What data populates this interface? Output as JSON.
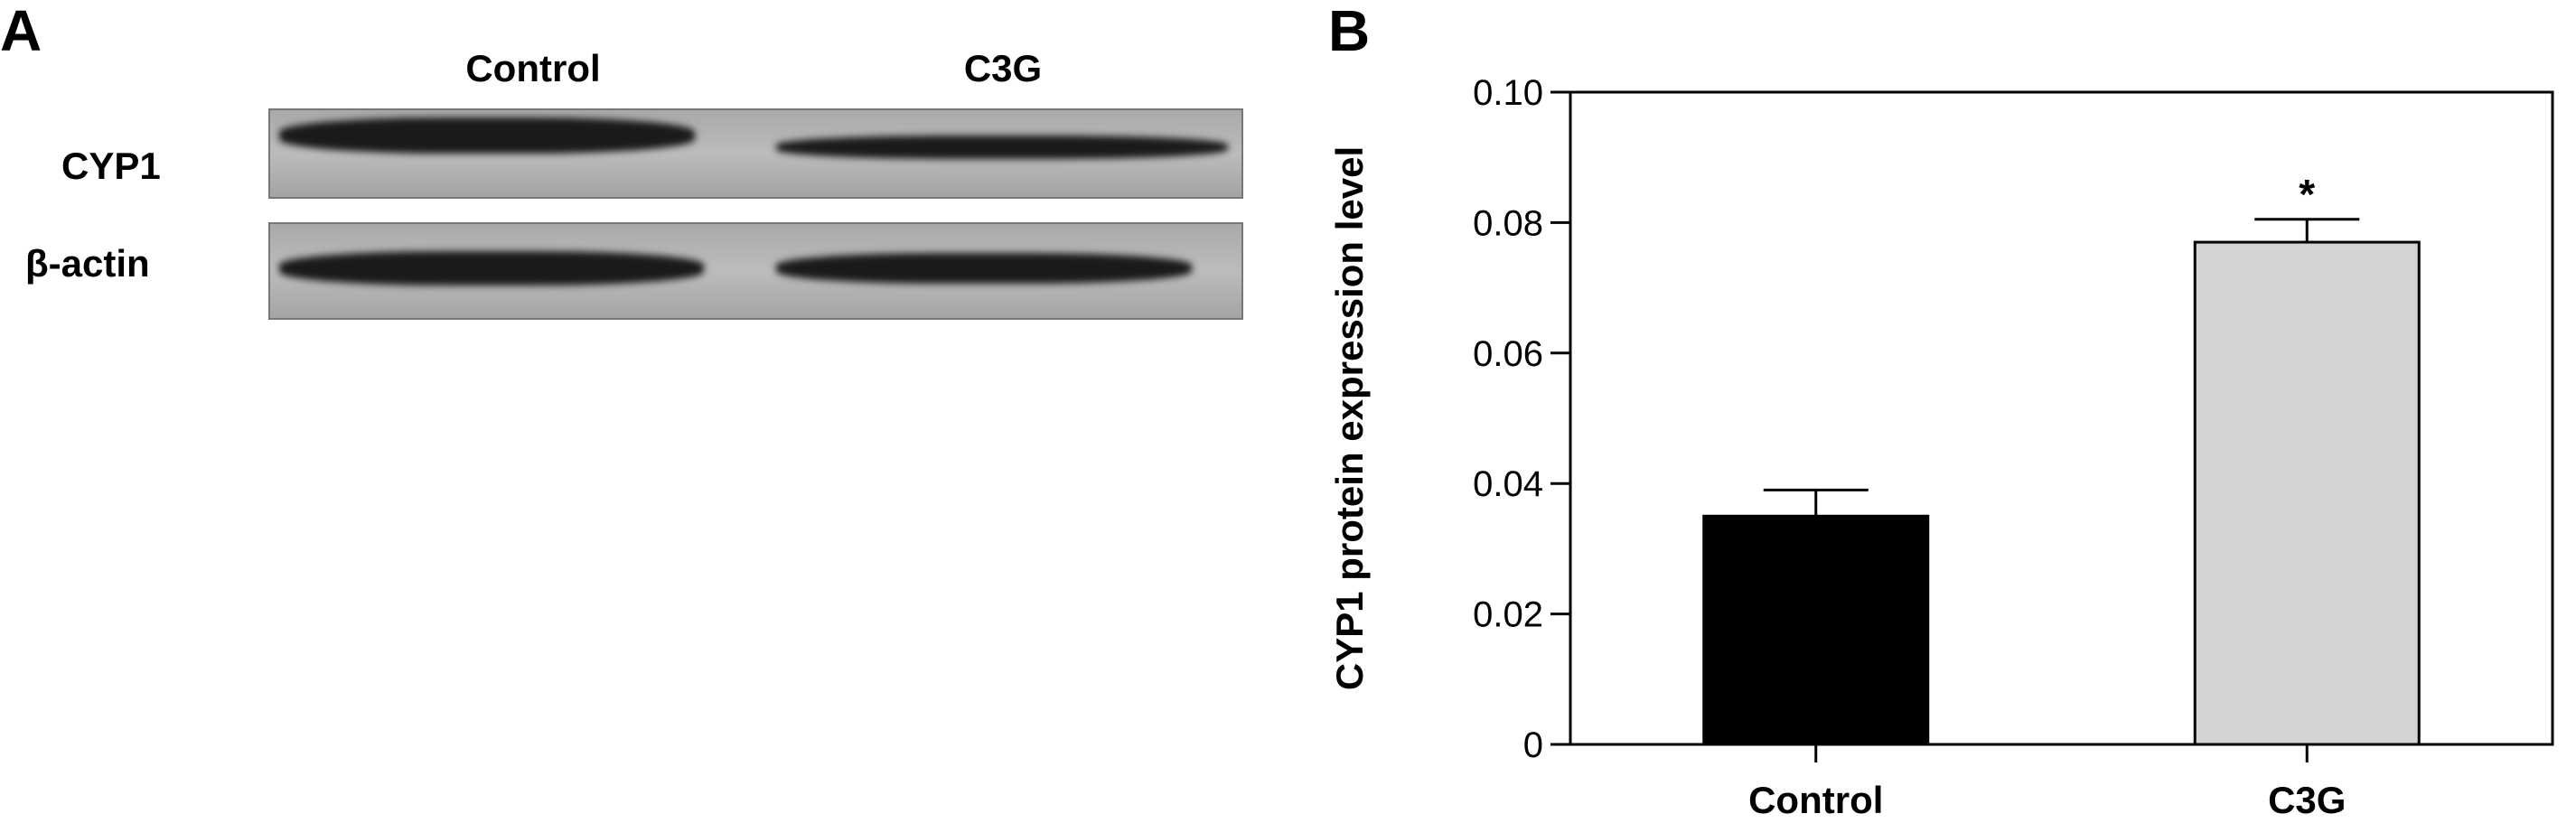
{
  "panels": {
    "a": "A",
    "b": "B"
  },
  "blot": {
    "lanes": [
      "Control",
      "C3G"
    ],
    "rows": [
      "CYP1",
      "β-actin"
    ]
  },
  "chart_data": {
    "type": "bar",
    "categories": [
      "Control",
      "C3G"
    ],
    "values": [
      0.035,
      0.077
    ],
    "errors": [
      0.004,
      0.0035
    ],
    "bar_colors": [
      "#000000",
      "#d3d3d3"
    ],
    "annotations": [
      "",
      "*"
    ],
    "ylabel": "CYP1 protein expression level",
    "xlabel": "",
    "ylim": [
      0,
      0.1
    ],
    "yticks": [
      0,
      0.02,
      0.04,
      0.06,
      0.08,
      0.1
    ],
    "ytick_labels": [
      "0",
      "0.02",
      "0.04",
      "0.06",
      "0.08",
      "0.10"
    ],
    "grid": false
  }
}
